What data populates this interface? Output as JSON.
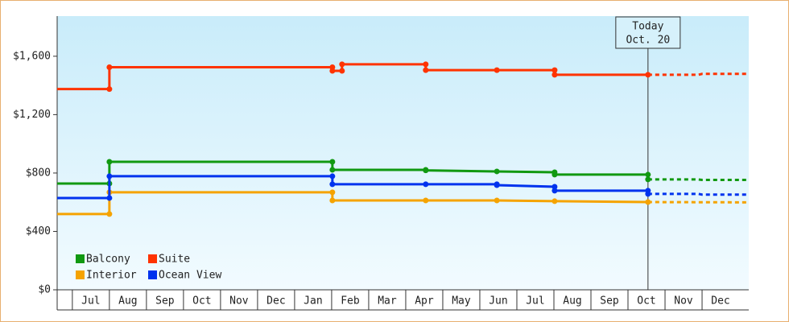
{
  "chart_data": {
    "type": "line",
    "xlim": [
      -0.41,
      18.26
    ],
    "xticks": [
      {
        "value": 0.5,
        "label": "Jul"
      },
      {
        "value": 1.5,
        "label": "Aug"
      },
      {
        "value": 2.5,
        "label": "Sep"
      },
      {
        "value": 3.5,
        "label": "Oct"
      },
      {
        "value": 4.5,
        "label": "Nov"
      },
      {
        "value": 5.5,
        "label": "Dec"
      },
      {
        "value": 6.5,
        "label": "Jan"
      },
      {
        "value": 7.5,
        "label": "Feb"
      },
      {
        "value": 8.5,
        "label": "Mar"
      },
      {
        "value": 9.5,
        "label": "Apr"
      },
      {
        "value": 10.5,
        "label": "May"
      },
      {
        "value": 11.5,
        "label": "Jun"
      },
      {
        "value": 12.5,
        "label": "Jul"
      },
      {
        "value": 13.5,
        "label": "Aug"
      },
      {
        "value": 14.5,
        "label": "Sep"
      },
      {
        "value": 15.5,
        "label": "Oct"
      },
      {
        "value": 16.5,
        "label": "Nov"
      },
      {
        "value": 17.5,
        "label": "Dec"
      }
    ],
    "ylim": [
      0,
      1875
    ],
    "yticks": [
      {
        "value": 0,
        "label": "$0"
      },
      {
        "value": 400,
        "label": "$400"
      },
      {
        "value": 800,
        "label": "$800"
      },
      {
        "value": 1200,
        "label": "$1,200"
      },
      {
        "value": 1600,
        "label": "$1,600"
      }
    ],
    "annotation": {
      "lines": [
        "Today",
        "Oct. 20"
      ],
      "x": 15.54
    },
    "series": [
      {
        "name": "Balcony",
        "color": "#119911",
        "x": [
          -0.41,
          1.0,
          1.0,
          7.02,
          7.02,
          9.54,
          9.54,
          11.46,
          13.02,
          13.02,
          15.54,
          15.54,
          16.9,
          17.0,
          18.26
        ],
        "values": [
          728,
          728,
          877,
          877,
          822,
          822,
          818,
          811,
          805,
          789,
          789,
          756,
          756,
          753,
          753
        ]
      },
      {
        "name": "Suite",
        "color": "#ff3300",
        "x": [
          -0.41,
          1.0,
          1.0,
          7.02,
          7.02,
          7.28,
          7.28,
          9.54,
          9.54,
          11.46,
          13.02,
          13.02,
          15.54,
          16.9,
          17.0,
          18.26
        ],
        "values": [
          1375,
          1375,
          1525,
          1525,
          1500,
          1500,
          1545,
          1545,
          1505,
          1505,
          1505,
          1473,
          1473,
          1473,
          1479,
          1479
        ]
      },
      {
        "name": "Interior",
        "color": "#f5a300",
        "x": [
          -0.41,
          1.0,
          1.0,
          7.02,
          7.02,
          9.54,
          11.46,
          13.02,
          15.54,
          18.26
        ],
        "values": [
          519,
          519,
          668,
          668,
          612,
          612,
          612,
          607,
          601,
          599
        ]
      },
      {
        "name": "Ocean View",
        "color": "#0033ee",
        "x": [
          -0.41,
          1.0,
          1.0,
          7.02,
          7.02,
          9.54,
          11.46,
          11.46,
          13.02,
          13.02,
          15.54,
          15.54,
          16.9,
          17.0,
          18.26
        ],
        "values": [
          629,
          629,
          778,
          778,
          723,
          723,
          723,
          717,
          706,
          679,
          679,
          657,
          657,
          652,
          652
        ]
      }
    ]
  }
}
